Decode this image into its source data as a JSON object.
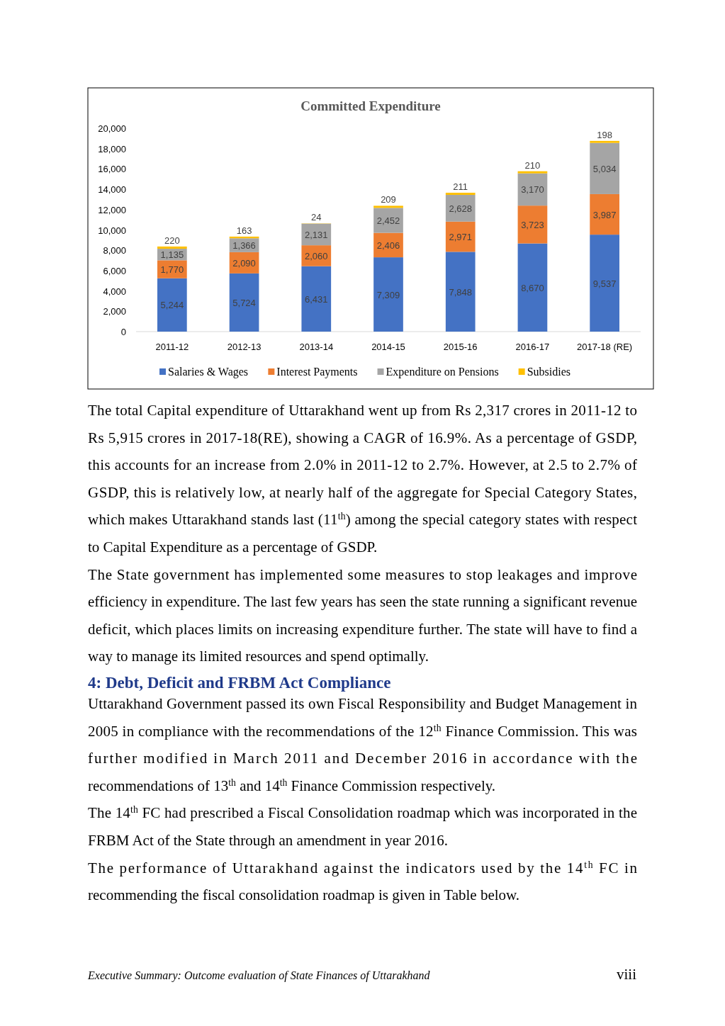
{
  "chart_data": {
    "type": "bar",
    "title": "Committed Expenditure",
    "categories": [
      "2011-12",
      "2012-13",
      "2013-14",
      "2014-15",
      "2015-16",
      "2016-17",
      "2017-18 (RE)"
    ],
    "stacked": true,
    "grid": false,
    "legend": "bottom",
    "ylim": [
      0,
      20000
    ],
    "yticks": [
      {
        "value": 0,
        "label": "0"
      },
      {
        "value": 2000,
        "label": "2,000"
      },
      {
        "value": 4000,
        "label": "4,000"
      },
      {
        "value": 6000,
        "label": "6,000"
      },
      {
        "value": 8000,
        "label": "8,000"
      },
      {
        "value": 10000,
        "label": "10,000"
      },
      {
        "value": 12000,
        "label": "12,000"
      },
      {
        "value": 14000,
        "label": "14,000"
      },
      {
        "value": 16000,
        "label": "16,000"
      },
      {
        "value": 18000,
        "label": "18,000"
      },
      {
        "value": 20000,
        "label": "20,000"
      }
    ],
    "series": [
      {
        "name": "Salaries & Wages",
        "color": "#4472c4",
        "values": [
          5244,
          5724,
          6431,
          7309,
          7848,
          8670,
          9537
        ],
        "value_labels": [
          "5,244",
          "5,724",
          "6,431",
          "7,309",
          "7,848",
          "8,670",
          "9,537"
        ]
      },
      {
        "name": "Interest Payments",
        "color": "#ed7d31",
        "values": [
          1770,
          2090,
          2060,
          2406,
          2971,
          3723,
          3987
        ],
        "value_labels": [
          "1,770",
          "2,090",
          "2,060",
          "2,406",
          "2,971",
          "3,723",
          "3,987"
        ]
      },
      {
        "name": "Expenditure on Pensions",
        "color": "#a5a5a5",
        "values": [
          1135,
          1366,
          2131,
          2452,
          2628,
          3170,
          5034
        ],
        "value_labels": [
          "1,135",
          "1,366",
          "2,131",
          "2,452",
          "2,628",
          "3,170",
          "5,034"
        ]
      },
      {
        "name": "Subsidies",
        "color": "#ffc000",
        "values": [
          220,
          163,
          24,
          209,
          211,
          210,
          198
        ],
        "value_labels": [
          "220",
          "163",
          "24",
          "209",
          "211",
          "210",
          "198"
        ]
      }
    ],
    "annotations": [
      "The total Capital expenditure of Uttarakhand went up from Rs 2,317 crores in 2011-12 to Rs 5,915 crores in 2017-18(RE), showing a CAGR of 16.9%. As a percentage of GSDP, this accounts for an increase from 2.0% in 2011-12 to 2.7%. However, at 2.5 to 2.7% of GSDP, this is relatively low, at nearly half of the aggregate for Special Category States, which makes Uttarakhand stands last (11$^{th}$) among the special category states with respect to Capital Expenditure as a percentage of GSDP.",
      "The State government has implemented some measures to stop leakages and improve efficiency in expenditure. The last few years has seen the state running a significant revenue deficit, which places limits on increasing expenditure further. The state will have to find a way to manage its limited resources and spend optimally.",
      "4: Debt, Deficit and FRBM Act Compliance",
      "Uttarakhand Government passed its own Fiscal Responsibility and Budget Management in 2005 in compliance with the recommendations of the 12$^{th}$ Finance Commission. This was further modified in March 2011 and December 2016 in accordance with the recommendations of 13$^{th}$ and 14$^{th}$ Finance Commission respectively.",
      "The 14$^{th}$ FC had prescribed a Fiscal Consolidation roadmap which was incorporated in the FRBM Act of the State through an amendment in year 2016.",
      "The performance of Uttarakhand against the indicators used by the 14$^{th}$ FC in recommending the fiscal consolidation roadmap is given in Table below.",
      "Executive Summary: Outcome evaluation of State Finances of Uttarakhand",
      "viii"
    ]
  }
}
